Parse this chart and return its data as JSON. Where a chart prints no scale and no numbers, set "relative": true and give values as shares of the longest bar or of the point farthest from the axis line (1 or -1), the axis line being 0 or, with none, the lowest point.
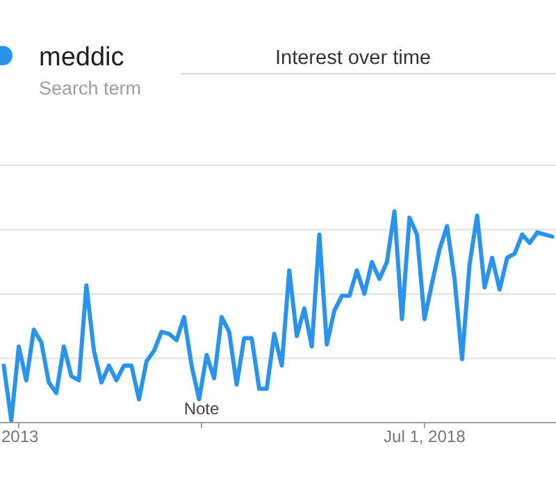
{
  "chart_data": {
    "type": "line",
    "title": "Interest over time",
    "relative": true,
    "grid": true,
    "legend": "top left",
    "line_style": "solid",
    "marker": "none",
    "categories": [
      null,
      null,
      "2013",
      null,
      null,
      null,
      null,
      null,
      null,
      null,
      null,
      null,
      null,
      null,
      null,
      null,
      null,
      null,
      null,
      null,
      null,
      null,
      null,
      null,
      null,
      null,
      null,
      null,
      null,
      null,
      null,
      null,
      null,
      null,
      null,
      null,
      null,
      null,
      null,
      null,
      null,
      null,
      null,
      null,
      null,
      null,
      null,
      null,
      null,
      null,
      null,
      null,
      null,
      null,
      null,
      null,
      "Jul 1, 2018",
      null,
      null,
      null,
      null,
      null,
      null,
      null,
      null,
      null,
      null,
      null,
      null,
      null,
      null,
      null,
      null,
      null
    ],
    "series": [
      {
        "name": "meddic",
        "color": "#2a93ee",
        "values": [
          0.27,
          0.01,
          0.36,
          0.2,
          0.44,
          0.38,
          0.19,
          0.14,
          0.36,
          0.22,
          0.2,
          0.65,
          0.34,
          0.19,
          0.27,
          0.2,
          0.27,
          0.27,
          0.11,
          0.29,
          0.34,
          0.43,
          0.42,
          0.39,
          0.5,
          0.27,
          0.11,
          0.32,
          0.21,
          0.5,
          0.43,
          0.18,
          0.4,
          0.4,
          0.16,
          0.16,
          0.42,
          0.27,
          0.72,
          0.41,
          0.54,
          0.36,
          0.89,
          0.37,
          0.53,
          0.6,
          0.6,
          0.72,
          0.61,
          0.76,
          0.68,
          0.76,
          1,
          0.49,
          0.97,
          0.89,
          0.49,
          0.66,
          0.82,
          0.93,
          0.68,
          0.3,
          0.75,
          0.98,
          0.64,
          0.78,
          0.63,
          0.78,
          0.8,
          0.89,
          0.85,
          0.9,
          0.89,
          0.88
        ]
      }
    ],
    "annotations": [
      "Search term",
      "Note"
    ]
  }
}
